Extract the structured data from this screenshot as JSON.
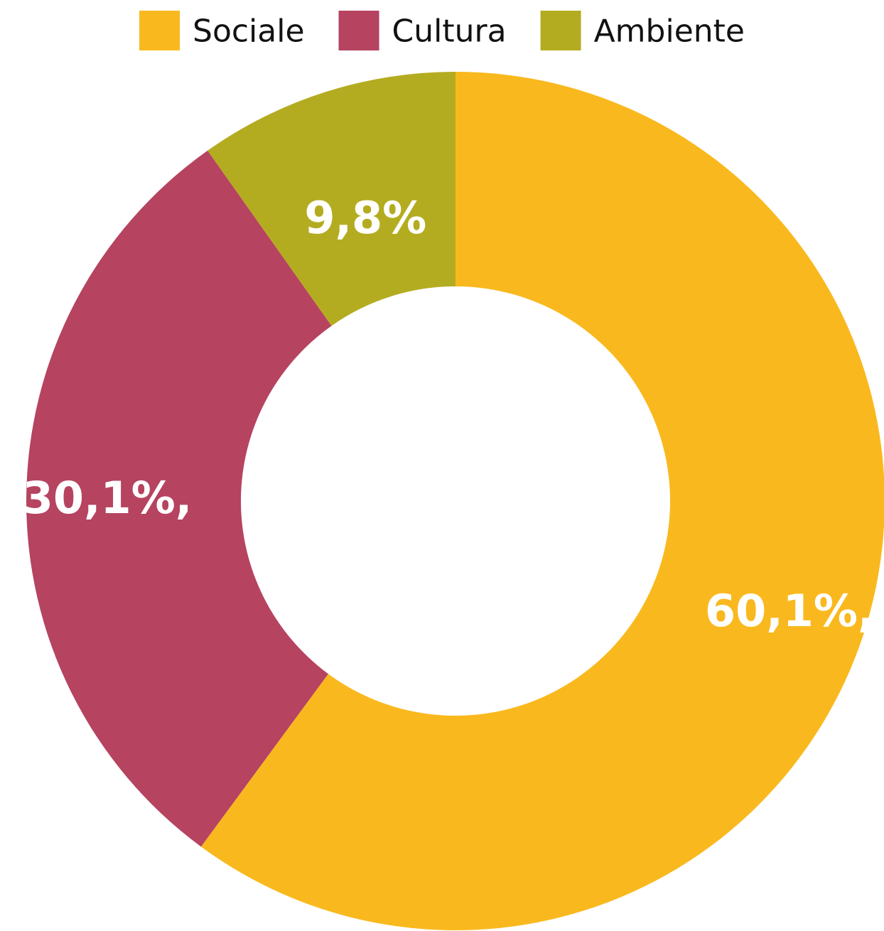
{
  "chart_data": {
    "type": "pie",
    "variant": "donut",
    "title": "",
    "legend_position": "top",
    "slices": [
      {
        "name": "Sociale",
        "value": 60.1,
        "label": "60,1%,",
        "color": "#F9B91E"
      },
      {
        "name": "Cultura",
        "value": 30.1,
        "label": "30,1%,",
        "color": "#B64360"
      },
      {
        "name": "Ambiente",
        "value": 9.8,
        "label": "9,8%",
        "color": "#B4AC20"
      }
    ]
  }
}
